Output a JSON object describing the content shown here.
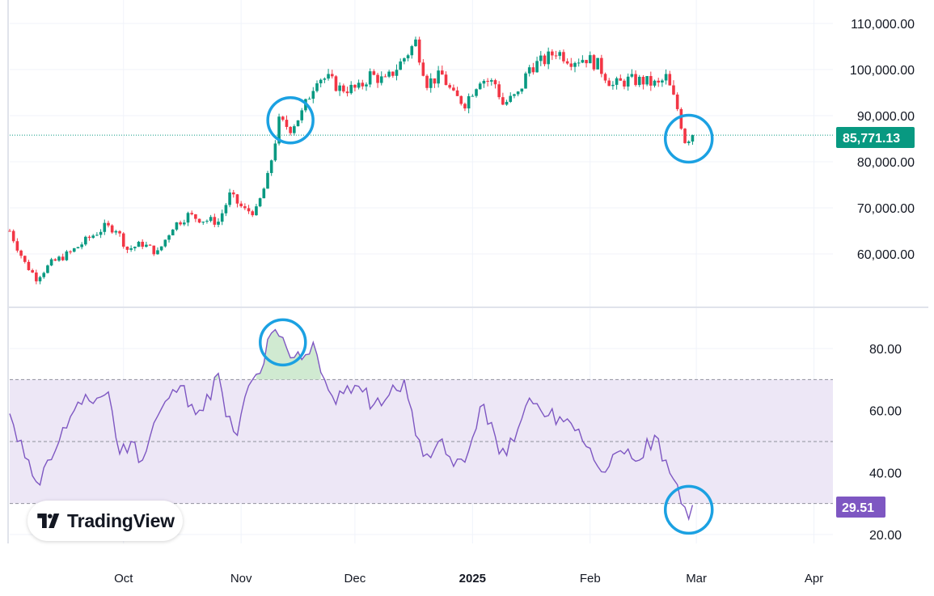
{
  "watermark": {
    "label": "TradingView",
    "icon": "tradingview-logo-icon"
  },
  "colors": {
    "up": "#089981",
    "down": "#f23645",
    "rsi_line": "#7e57c2",
    "rsi_band": "#ede7f6",
    "circle": "#1ba1e2",
    "overbought_fill": "#c8e6c9"
  },
  "price_badge": {
    "label": "85,771.13",
    "color": "#089981"
  },
  "rsi_badge": {
    "label": "29.51",
    "color": "#7e57c2"
  },
  "annotations": [
    {
      "name": "circle-nov-breakout"
    },
    {
      "name": "circle-feb-drop"
    },
    {
      "name": "circle-rsi-overbought"
    },
    {
      "name": "circle-rsi-oversold"
    }
  ],
  "chart_data": [
    {
      "type": "candlestick",
      "price_axis": {
        "ticks": [
          "110,000.00",
          "100,000.00",
          "90,000.00",
          "80,000.00",
          "70,000.00",
          "60,000.00"
        ],
        "range": [
          50000,
          115000
        ]
      },
      "time_axis": {
        "labels": [
          "Oct",
          "Nov",
          "Dec",
          "2025",
          "Feb",
          "Mar",
          "Apr"
        ],
        "range": [
          "2024-09-01",
          "2025-04-06"
        ]
      },
      "last_price": 85771.13,
      "daily_close": [
        [
          "2024-09-01",
          65000
        ],
        [
          "2024-09-05",
          58000
        ],
        [
          "2024-09-08",
          54800
        ],
        [
          "2024-09-12",
          58000
        ],
        [
          "2024-09-17",
          60300
        ],
        [
          "2024-09-22",
          63500
        ],
        [
          "2024-09-26",
          65800
        ],
        [
          "2024-09-29",
          65500
        ],
        [
          "2024-10-02",
          61000
        ],
        [
          "2024-10-06",
          62200
        ],
        [
          "2024-10-10",
          60200
        ],
        [
          "2024-10-14",
          66000
        ],
        [
          "2024-10-18",
          68400
        ],
        [
          "2024-10-22",
          67400
        ],
        [
          "2024-10-26",
          67000
        ],
        [
          "2024-10-29",
          72700
        ],
        [
          "2024-11-02",
          69400
        ],
        [
          "2024-11-05",
          69300
        ],
        [
          "2024-11-08",
          76500
        ],
        [
          "2024-11-11",
          88700
        ],
        [
          "2024-11-14",
          87300
        ],
        [
          "2024-11-17",
          90500
        ],
        [
          "2024-11-21",
          98400
        ],
        [
          "2024-11-24",
          97900
        ],
        [
          "2024-11-27",
          95900
        ],
        [
          "2024-12-02",
          95800
        ],
        [
          "2024-12-05",
          98900
        ],
        [
          "2024-12-09",
          97400
        ],
        [
          "2024-12-13",
          101400
        ],
        [
          "2024-12-17",
          106000
        ],
        [
          "2024-12-20",
          97200
        ],
        [
          "2024-12-24",
          98700
        ],
        [
          "2024-12-27",
          94200
        ],
        [
          "2024-12-30",
          92800
        ],
        [
          "2025-01-03",
          98100
        ],
        [
          "2025-01-07",
          96900
        ],
        [
          "2025-01-09",
          92500
        ],
        [
          "2025-01-13",
          94500
        ],
        [
          "2025-01-16",
          100500
        ],
        [
          "2025-01-20",
          102000
        ],
        [
          "2025-01-23",
          104000
        ],
        [
          "2025-01-27",
          102100
        ],
        [
          "2025-01-31",
          102500
        ],
        [
          "2025-02-03",
          101000
        ],
        [
          "2025-02-07",
          96500
        ],
        [
          "2025-02-11",
          97700
        ],
        [
          "2025-02-15",
          97500
        ],
        [
          "2025-02-19",
          96600
        ],
        [
          "2025-02-21",
          98300
        ],
        [
          "2025-02-24",
          91500
        ],
        [
          "2025-02-26",
          84700
        ],
        [
          "2025-02-28",
          85771.13
        ]
      ]
    },
    {
      "type": "line",
      "name": "RSI",
      "y_axis": {
        "ticks": [
          "80.00",
          "60.00",
          "40.00",
          "20.00"
        ],
        "range": [
          16,
          92
        ]
      },
      "bands": {
        "upper": 70,
        "middle": 50,
        "lower": 30
      },
      "last_value": 29.51,
      "values": [
        [
          "2024-09-01",
          59
        ],
        [
          "2024-09-03",
          50
        ],
        [
          "2024-09-06",
          44
        ],
        [
          "2024-09-09",
          36
        ],
        [
          "2024-09-11",
          44
        ],
        [
          "2024-09-14",
          50
        ],
        [
          "2024-09-17",
          58
        ],
        [
          "2024-09-20",
          62
        ],
        [
          "2024-09-24",
          64
        ],
        [
          "2024-09-27",
          66
        ],
        [
          "2024-09-30",
          46
        ],
        [
          "2024-10-03",
          50
        ],
        [
          "2024-10-06",
          44
        ],
        [
          "2024-10-09",
          56
        ],
        [
          "2024-10-13",
          64
        ],
        [
          "2024-10-16",
          68
        ],
        [
          "2024-10-19",
          62
        ],
        [
          "2024-10-22",
          60
        ],
        [
          "2024-10-26",
          72
        ],
        [
          "2024-10-28",
          58
        ],
        [
          "2024-10-31",
          52
        ],
        [
          "2024-11-03",
          68
        ],
        [
          "2024-11-06",
          72
        ],
        [
          "2024-11-09",
          85
        ],
        [
          "2024-11-11",
          84
        ],
        [
          "2024-11-14",
          77
        ],
        [
          "2024-11-18",
          78
        ],
        [
          "2024-11-20",
          82
        ],
        [
          "2024-11-23",
          70
        ],
        [
          "2024-11-26",
          62
        ],
        [
          "2024-11-29",
          68
        ],
        [
          "2024-12-03",
          66
        ],
        [
          "2024-12-06",
          62
        ],
        [
          "2024-12-10",
          65
        ],
        [
          "2024-12-14",
          70
        ],
        [
          "2024-12-17",
          52
        ],
        [
          "2024-12-20",
          46
        ],
        [
          "2024-12-23",
          50
        ],
        [
          "2024-12-27",
          42
        ],
        [
          "2024-12-31",
          47
        ],
        [
          "2025-01-04",
          62
        ],
        [
          "2025-01-08",
          46
        ],
        [
          "2025-01-12",
          50
        ],
        [
          "2025-01-16",
          64
        ],
        [
          "2025-01-20",
          58
        ],
        [
          "2025-01-24",
          58
        ],
        [
          "2025-01-29",
          54
        ],
        [
          "2025-02-02",
          44
        ],
        [
          "2025-02-06",
          42
        ],
        [
          "2025-02-10",
          46
        ],
        [
          "2025-02-14",
          44
        ],
        [
          "2025-02-18",
          52
        ],
        [
          "2025-02-21",
          44
        ],
        [
          "2025-02-25",
          30
        ],
        [
          "2025-02-27",
          25
        ],
        [
          "2025-02-28",
          29.51
        ]
      ]
    }
  ]
}
